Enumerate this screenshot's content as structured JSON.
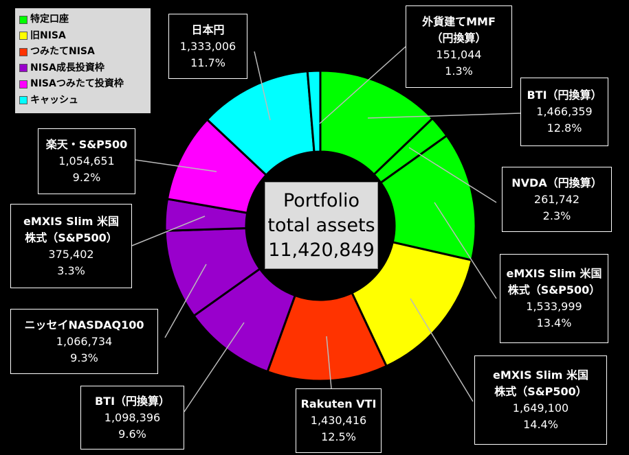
{
  "chart_data": {
    "type": "donut",
    "categories": [
      "BTI（円換算）",
      "NVDA（円換算）",
      "eMXIS Slim 米国\n株式（S&P500）",
      "eMXIS Slim 米国\n株式（S&P500）",
      "Rakuten VTI",
      "BTI（円換算）",
      "ニッセイNASDAQ100",
      "eMXIS Slim 米国\n株式（S&P500）",
      "楽天・S&P500",
      "日本円",
      "外貨建てMMF\n（円換算）"
    ],
    "values": [
      1466359,
      261742,
      1533999,
      1649100,
      1430416,
      1098396,
      1066734,
      375402,
      1054651,
      1333006,
      151044
    ],
    "value_labels": [
      "1,466,359",
      "261,742",
      "1,533,999",
      "1,649,100",
      "1,430,416",
      "1,098,396",
      "1,066,734",
      "375,402",
      "1,054,651",
      "1,333,006",
      "151,044"
    ],
    "percent_labels": [
      "12.8%",
      "2.3%",
      "13.4%",
      "14.4%",
      "12.5%",
      "9.6%",
      "9.3%",
      "3.3%",
      "9.2%",
      "11.7%",
      "1.3%"
    ],
    "colors": [
      "#00ff00",
      "#00ff00",
      "#00ff00",
      "#ffff00",
      "#ff3300",
      "#9900cc",
      "#9900cc",
      "#9900cc",
      "#ff00ff",
      "#00ffff",
      "#00ffff"
    ],
    "legend": [
      {
        "name": "特定口座",
        "color": "#00ff00"
      },
      {
        "name": "旧NISA",
        "color": "#ffff00"
      },
      {
        "name": "つみたてNISA",
        "color": "#ff3300"
      },
      {
        "name": "NISA成長投資枠",
        "color": "#9900cc"
      },
      {
        "name": "NISAつみたて投資枠",
        "color": "#ff00ff"
      },
      {
        "name": "キャッシュ",
        "color": "#00ffff"
      }
    ],
    "center_title": "Portfolio\ntotal assets",
    "total": {
      "value": 11420849,
      "label": "11,420,849"
    }
  }
}
